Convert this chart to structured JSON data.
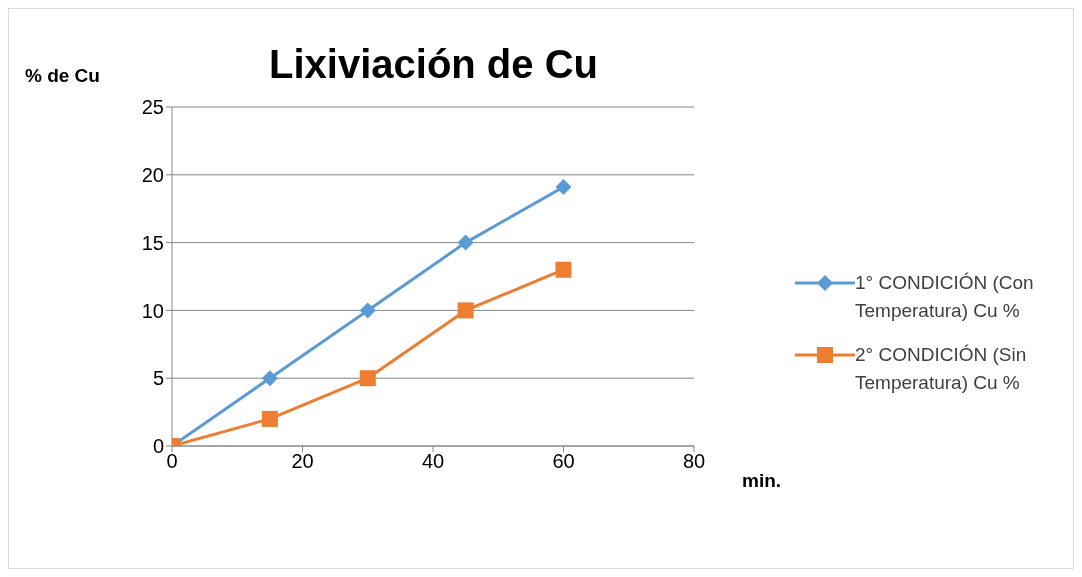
{
  "chart_data": {
    "type": "line",
    "title": "Lixiviación de Cu",
    "xlabel": "min.",
    "ylabel": "% de Cu",
    "x": [
      0,
      15,
      30,
      45,
      60
    ],
    "series": [
      {
        "name": "1° CONDICIÓN (Con Temperatura) Cu %",
        "color": "#5b9bd5",
        "marker": "diamond",
        "values": [
          0,
          5,
          10,
          15,
          19.1
        ]
      },
      {
        "name": "2° CONDICIÓN (Sin Temperatura) Cu %",
        "color": "#ed7d31",
        "marker": "square",
        "values": [
          0,
          2,
          5,
          10,
          13
        ]
      }
    ],
    "xlim": [
      0,
      80
    ],
    "xticks": [
      0,
      20,
      40,
      60,
      80
    ],
    "ylim": [
      0,
      25
    ],
    "yticks": [
      0,
      5,
      10,
      15,
      20,
      25
    ],
    "grid": "y",
    "legend": "right"
  }
}
